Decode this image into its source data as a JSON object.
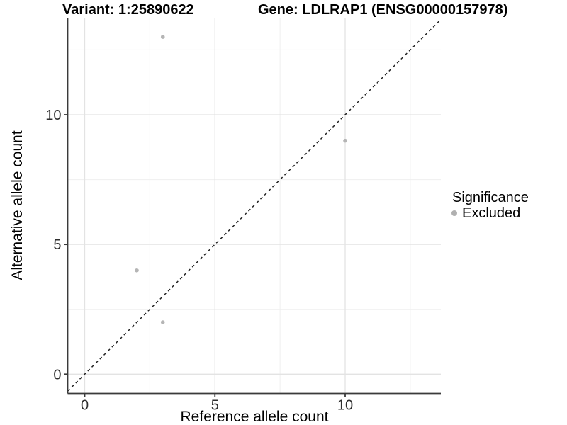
{
  "header": {
    "title_left": "Variant: 1:25890622",
    "title_right": "Gene: LDLRAP1 (ENSG00000157978)"
  },
  "chart_data": {
    "type": "scatter",
    "title": "Variant: 1:25890622 / Gene: LDLRAP1 (ENSG00000157978)",
    "xlabel": "Reference allele count",
    "ylabel": "Alternative allele count",
    "xlim": [
      -0.65,
      13.7
    ],
    "ylim": [
      -0.74,
      13.7
    ],
    "x_ticks": [
      0,
      5,
      10
    ],
    "y_ticks": [
      0,
      5,
      10
    ],
    "minor_breaks": [
      2.5,
      7.5,
      12.5
    ],
    "grid": true,
    "identity_line": {
      "slope": 1,
      "intercept": 0,
      "style": "dashed",
      "color": "#222222"
    },
    "series": [
      {
        "name": "Excluded",
        "color": "#b5b5b5",
        "points": [
          [
            3,
            13
          ],
          [
            10,
            9
          ],
          [
            2,
            4
          ],
          [
            3,
            2
          ]
        ]
      }
    ],
    "legend": {
      "title": "Significance",
      "position": "right",
      "entries": [
        {
          "label": "Excluded",
          "color": "#b0b0b0"
        }
      ]
    }
  },
  "colors": {
    "point_gray": "#b5b5b5",
    "axis_line": "#3a3a3a",
    "tick_text": "#2e2e2e",
    "grid_major": "#e3e3e3",
    "grid_minor": "#efefef"
  }
}
